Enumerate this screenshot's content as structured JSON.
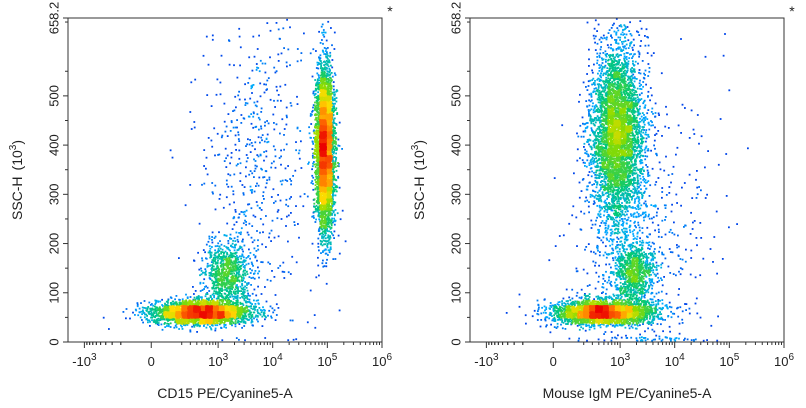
{
  "chart_data": [
    {
      "type": "scatter",
      "subtype": "flow-cytometry-density-dot-plot",
      "title": "",
      "marker": "*",
      "xlabel": "CD15 PE/Cyanine5-A",
      "ylabel_main": "SSC-H",
      "ylabel_unit": "(10",
      "ylabel_exp": "3",
      "ylabel_close": ")",
      "x_scale": "biexponential",
      "xlim": [
        -2000,
        1000000
      ],
      "ylim": [
        0,
        658.2
      ],
      "x_ticks": [
        {
          "value": -1000,
          "base": "-10",
          "exp": "3"
        },
        {
          "value": 0,
          "base": "0",
          "exp": ""
        },
        {
          "value": 1000,
          "base": "10",
          "exp": "3"
        },
        {
          "value": 10000,
          "base": "10",
          "exp": "4"
        },
        {
          "value": 100000,
          "base": "10",
          "exp": "5"
        },
        {
          "value": 1000000,
          "base": "10",
          "exp": "6"
        }
      ],
      "y_ticks": [
        {
          "value": 0,
          "label": "0"
        },
        {
          "value": 100,
          "label": "100"
        },
        {
          "value": 200,
          "label": "200"
        },
        {
          "value": 300,
          "label": "300"
        },
        {
          "value": 400,
          "label": "400"
        },
        {
          "value": 500,
          "label": "500"
        },
        {
          "value": 658.2,
          "label": "658.2"
        }
      ],
      "grid": false,
      "populations": [
        {
          "x_center": 500,
          "y_center": 60,
          "x_spread": 1.0,
          "y_spread": 12,
          "weight": 0.36
        },
        {
          "x_center": 1500,
          "y_center": 140,
          "x_spread": 0.5,
          "y_spread": 30,
          "weight": 0.1
        },
        {
          "x_center": 90000,
          "y_center": 390,
          "x_spread": 0.2,
          "y_spread": 80,
          "weight": 0.48
        },
        {
          "x_center": 5000,
          "y_center": 350,
          "x_spread": 1.2,
          "y_spread": 160,
          "weight": 0.06
        }
      ]
    },
    {
      "type": "scatter",
      "subtype": "flow-cytometry-density-dot-plot",
      "title": "",
      "marker": "*",
      "xlabel": "Mouse IgM PE/Cyanine5-A",
      "ylabel_main": "SSC-H",
      "ylabel_unit": "(10",
      "ylabel_exp": "3",
      "ylabel_close": ")",
      "x_scale": "biexponential",
      "xlim": [
        -2000,
        1000000
      ],
      "ylim": [
        0,
        658.2
      ],
      "x_ticks": [
        {
          "value": -1000,
          "base": "-10",
          "exp": "3"
        },
        {
          "value": 0,
          "base": "0",
          "exp": ""
        },
        {
          "value": 1000,
          "base": "10",
          "exp": "3"
        },
        {
          "value": 10000,
          "base": "10",
          "exp": "4"
        },
        {
          "value": 100000,
          "base": "10",
          "exp": "5"
        },
        {
          "value": 1000000,
          "base": "10",
          "exp": "6"
        }
      ],
      "y_ticks": [
        {
          "value": 0,
          "label": "0"
        },
        {
          "value": 100,
          "label": "100"
        },
        {
          "value": 200,
          "label": "200"
        },
        {
          "value": 300,
          "label": "300"
        },
        {
          "value": 400,
          "label": "400"
        },
        {
          "value": 500,
          "label": "500"
        },
        {
          "value": 658.2,
          "label": "658.2"
        }
      ],
      "grid": false,
      "populations": [
        {
          "x_center": 500,
          "y_center": 60,
          "x_spread": 1.0,
          "y_spread": 12,
          "weight": 0.36
        },
        {
          "x_center": 1800,
          "y_center": 140,
          "x_spread": 0.45,
          "y_spread": 30,
          "weight": 0.1
        },
        {
          "x_center": 900,
          "y_center": 420,
          "x_spread": 0.55,
          "y_spread": 90,
          "weight": 0.48
        },
        {
          "x_center": 3000,
          "y_center": 200,
          "x_spread": 1.5,
          "y_spread": 150,
          "weight": 0.06
        }
      ]
    }
  ]
}
